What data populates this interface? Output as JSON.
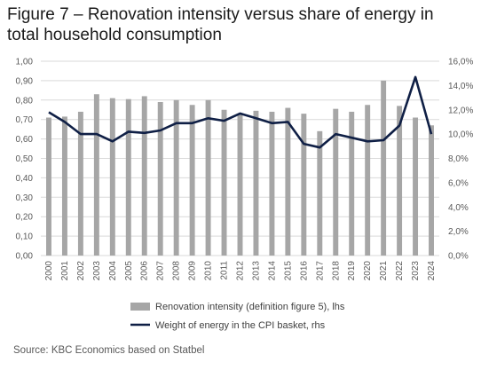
{
  "title": "Figure 7 – Renovation intensity versus share of energy in total household consumption",
  "source": "Source: KBC Economics based on Statbel",
  "colors": {
    "bar": "#a6a6a6",
    "line": "#0f1f45",
    "grid": "#d9d9d9"
  },
  "chart_data": {
    "type": "bar+line",
    "categories": [
      "2000",
      "2001",
      "2002",
      "2003",
      "2004",
      "2005",
      "2006",
      "2007",
      "2008",
      "2009",
      "2010",
      "2011",
      "2012",
      "2013",
      "2014",
      "2015",
      "2016",
      "2017",
      "2018",
      "2019",
      "2020",
      "2021",
      "2022",
      "2023",
      "2024"
    ],
    "left_axis": {
      "ylim": [
        0,
        1.0
      ],
      "step": 0.1,
      "tick_labels": [
        "0,00",
        "0,10",
        "0,20",
        "0,30",
        "0,40",
        "0,50",
        "0,60",
        "0,70",
        "0,80",
        "0,90",
        "1,00"
      ]
    },
    "right_axis": {
      "ylim": [
        0,
        16
      ],
      "step": 2,
      "tick_labels": [
        "0,0%",
        "2,0%",
        "4,0%",
        "6,0%",
        "8,0%",
        "10,0%",
        "12,0%",
        "14,0%",
        "16,0%"
      ]
    },
    "series": [
      {
        "name": "Renovation intensity (definition figure 5), lhs",
        "type": "bar",
        "axis": "left",
        "values": [
          0.71,
          0.715,
          0.74,
          0.83,
          0.81,
          0.805,
          0.82,
          0.79,
          0.8,
          0.775,
          0.8,
          0.75,
          0.73,
          0.745,
          0.74,
          0.76,
          0.73,
          0.64,
          0.755,
          0.74,
          0.775,
          0.9,
          0.77,
          0.71,
          0.67
        ]
      },
      {
        "name": "Weight of energy in the CPI basket, rhs",
        "type": "line",
        "axis": "right",
        "values": [
          11.8,
          11.0,
          10.0,
          10.0,
          9.4,
          10.2,
          10.1,
          10.3,
          10.9,
          10.9,
          11.3,
          11.1,
          11.7,
          11.3,
          10.9,
          11.0,
          9.2,
          8.9,
          10.0,
          9.7,
          9.4,
          9.5,
          10.7,
          14.7,
          10.0
        ]
      }
    ],
    "grid": true,
    "legend_position": "bottom"
  }
}
